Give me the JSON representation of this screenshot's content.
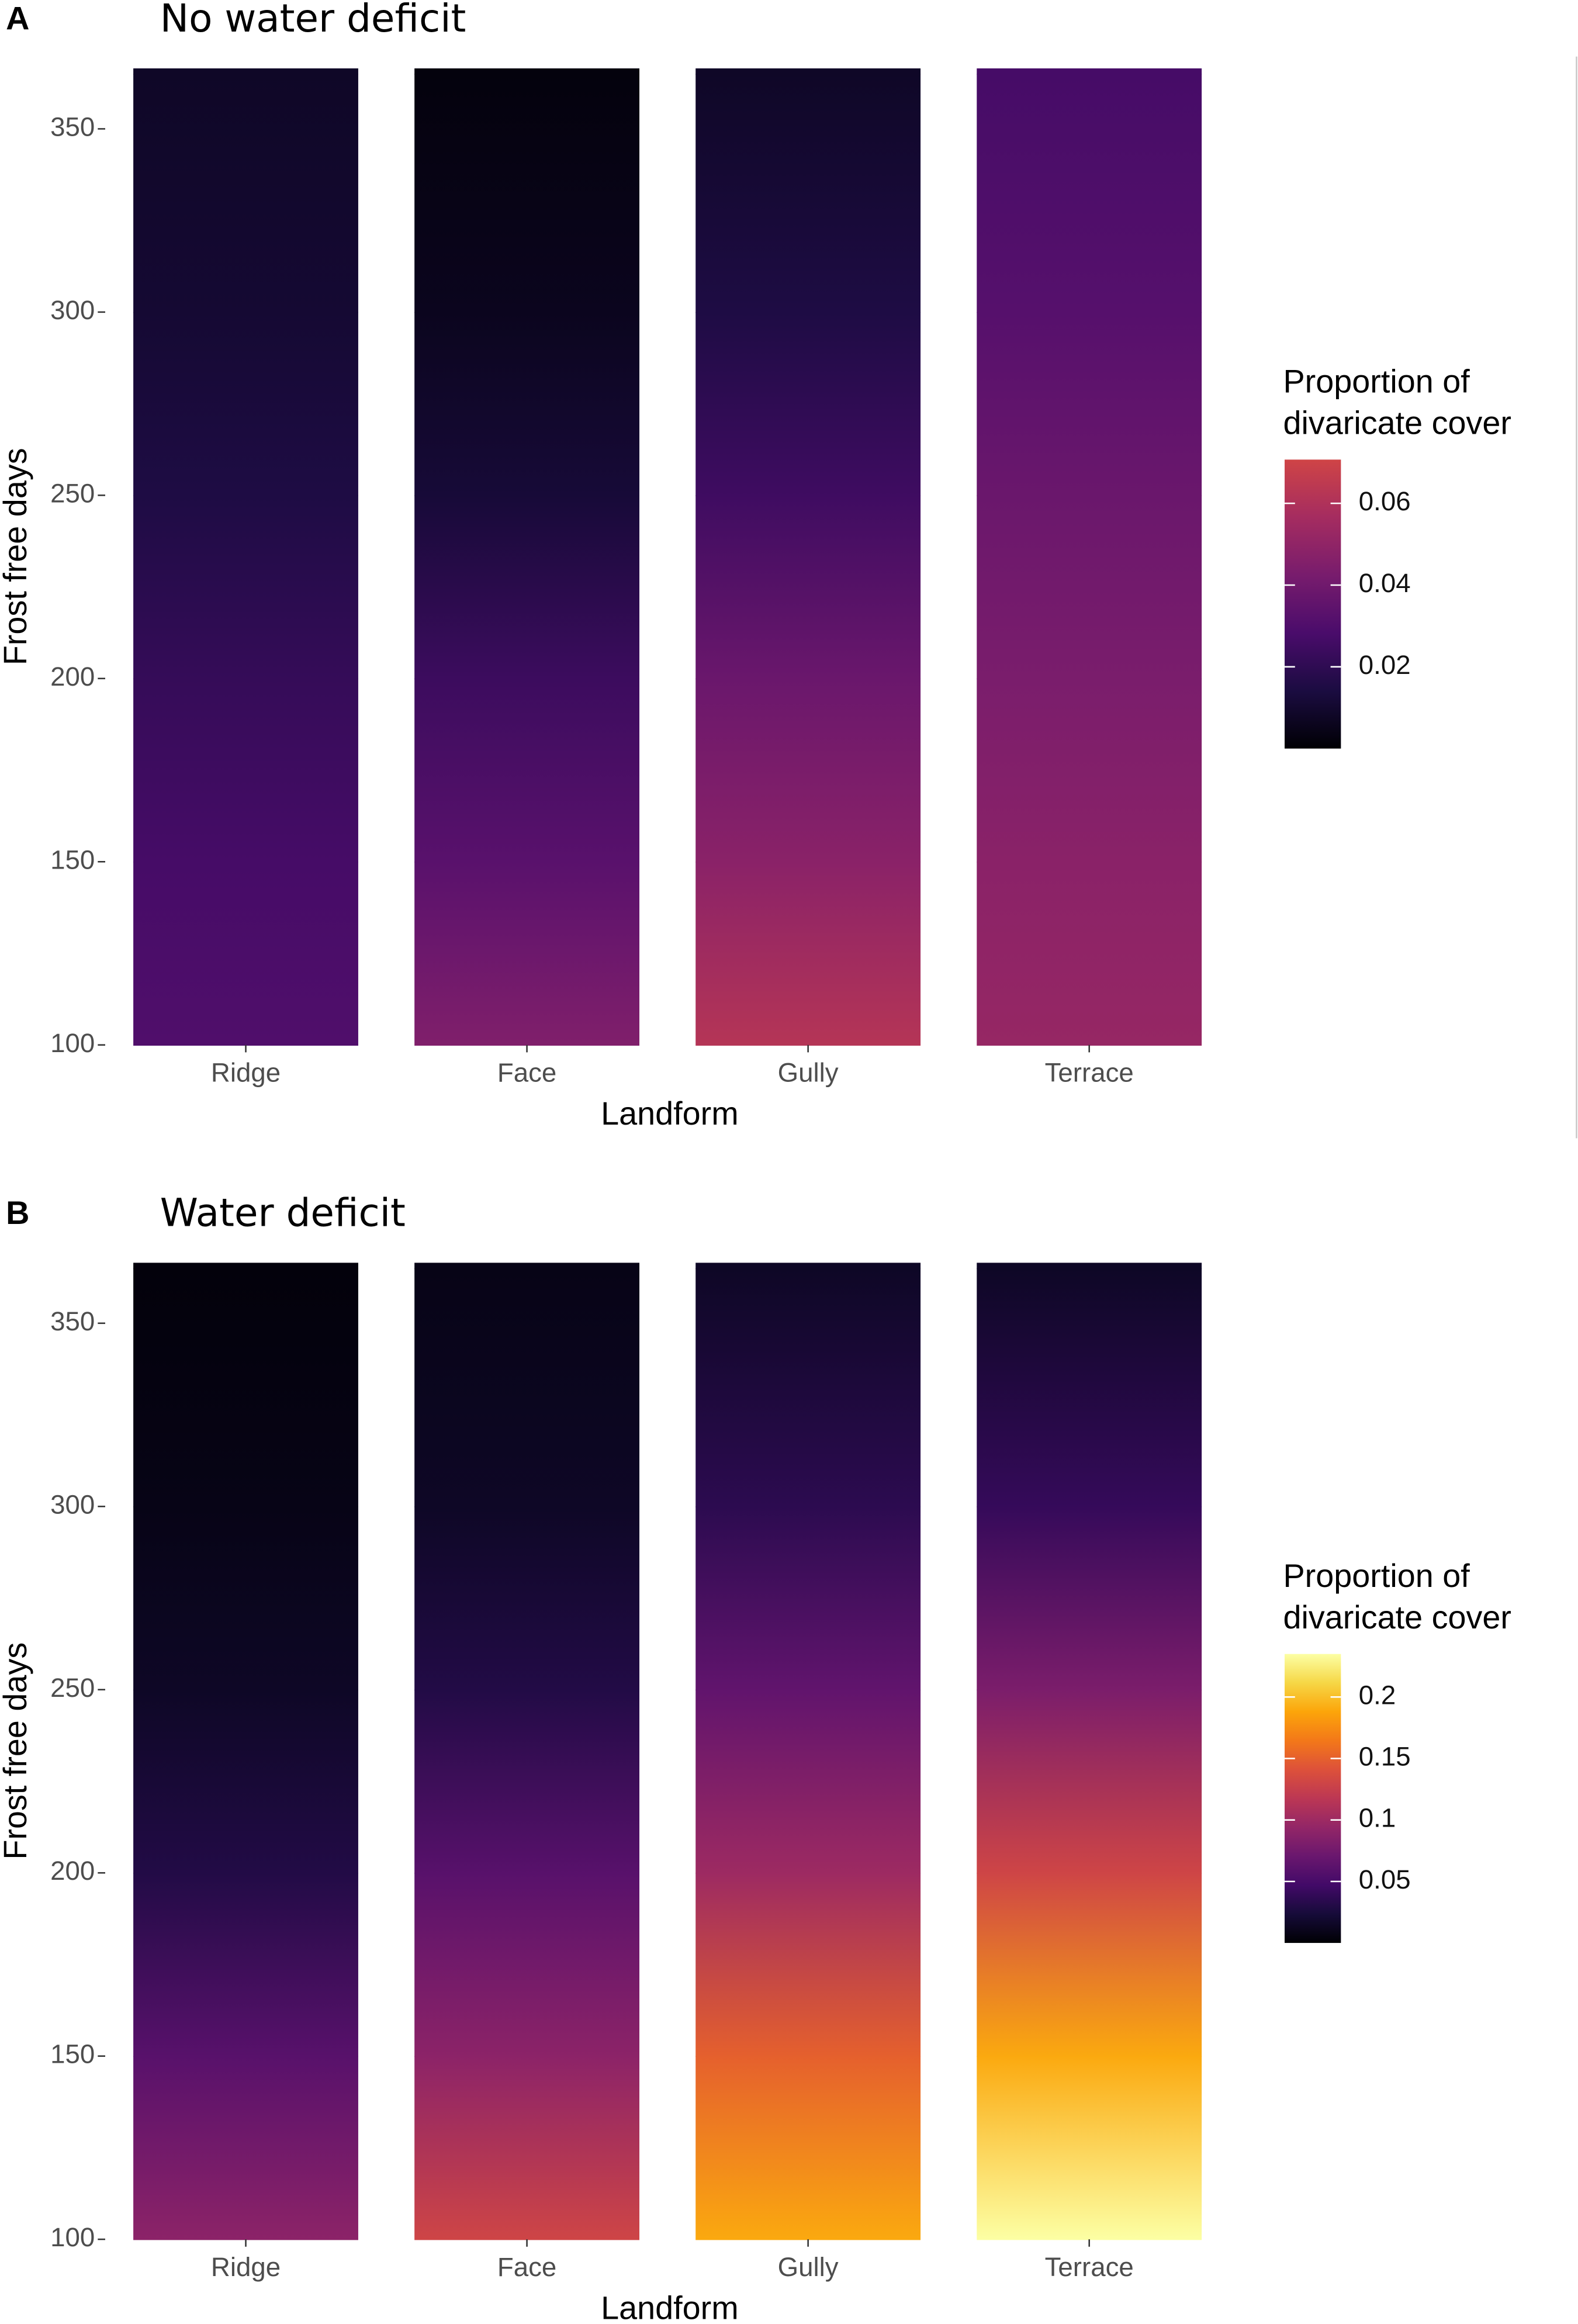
{
  "chart_data": [
    {
      "type": "heatmap",
      "panel_label": "A",
      "title": "No water deficit",
      "x_label": "Landform",
      "y_label": "Frost free days",
      "categories": [
        "Ridge",
        "Face",
        "Gully",
        "Terrace"
      ],
      "y": [
        100,
        150,
        200,
        250,
        300,
        365
      ],
      "values": [
        [
          0.03,
          0.027,
          0.022,
          0.015,
          0.011,
          0.008
        ],
        [
          0.045,
          0.033,
          0.024,
          0.012,
          0.006,
          0.002
        ],
        [
          0.062,
          0.048,
          0.038,
          0.025,
          0.015,
          0.008
        ],
        [
          0.052,
          0.048,
          0.043,
          0.038,
          0.032,
          0.027
        ]
      ],
      "ylim": [
        100,
        366.5
      ],
      "yticks": [
        100,
        150,
        200,
        250,
        300,
        350
      ],
      "legend_title": [
        "Proportion of",
        "divaricate cover"
      ],
      "clim": [
        0,
        0.0707
      ],
      "cticks": [
        0.02,
        0.04,
        0.06
      ],
      "colorscale": [
        "#000004",
        "#1b0c41",
        "#4a0c6b",
        "#781c6d",
        "#a52c60",
        "#cf4446"
      ]
    },
    {
      "type": "heatmap",
      "panel_label": "B",
      "title": "Water deficit",
      "x_label": "Landform",
      "y_label": "Frost free days",
      "categories": [
        "Ridge",
        "Face",
        "Gully",
        "Terrace"
      ],
      "y": [
        100,
        150,
        200,
        250,
        300,
        365
      ],
      "values": [
        [
          0.09,
          0.06,
          0.03,
          0.015,
          0.008,
          0.003
        ],
        [
          0.13,
          0.09,
          0.06,
          0.03,
          0.015,
          0.008
        ],
        [
          0.19,
          0.15,
          0.1,
          0.065,
          0.035,
          0.015
        ],
        [
          0.235,
          0.19,
          0.13,
          0.08,
          0.04,
          0.015
        ]
      ],
      "ylim": [
        100,
        366.5
      ],
      "yticks": [
        100,
        150,
        200,
        250,
        300,
        350
      ],
      "legend_title": [
        "Proportion of",
        "divaricate cover"
      ],
      "clim": [
        0,
        0.235
      ],
      "cticks": [
        0.05,
        0.1,
        0.15,
        0.2
      ],
      "colorscale": [
        "#000004",
        "#160b39",
        "#420a68",
        "#6a176e",
        "#932667",
        "#bc3754",
        "#dd513a",
        "#f37819",
        "#fca50a",
        "#f6d746",
        "#fcffa4"
      ]
    }
  ]
}
